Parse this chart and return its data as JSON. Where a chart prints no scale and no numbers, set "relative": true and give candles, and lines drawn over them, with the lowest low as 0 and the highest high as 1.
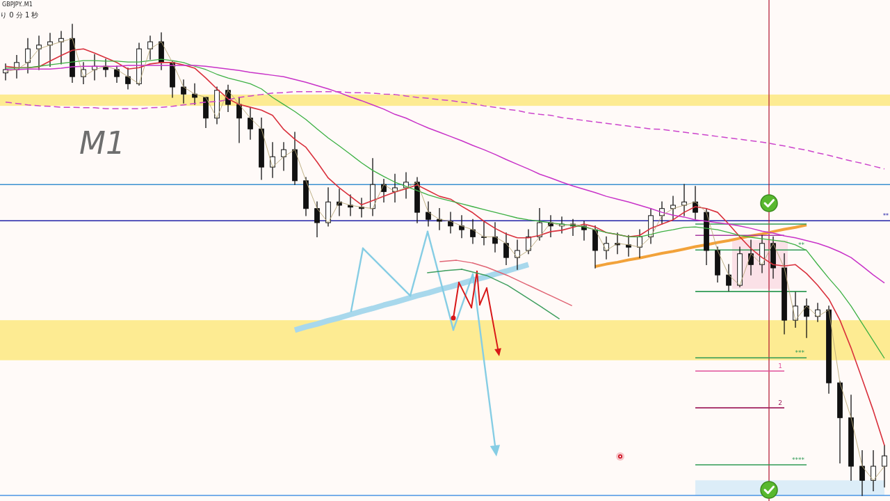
{
  "chart_data": {
    "type": "candlestick",
    "title": "GBPJPY..M1",
    "annotations": [
      "り 0 分 1 秒",
      "M1"
    ],
    "relative": true,
    "categories": [
      null,
      null,
      null,
      null,
      null,
      null,
      null,
      null,
      null,
      null,
      null,
      null,
      null,
      null,
      null,
      null,
      null,
      null,
      null,
      null,
      null,
      null,
      null,
      null,
      null,
      null,
      null,
      null,
      null,
      null,
      null,
      null,
      null,
      null,
      null,
      null,
      null,
      null,
      null,
      null,
      null,
      null,
      null,
      null,
      null,
      null,
      null,
      null,
      null,
      null,
      null,
      null,
      null,
      null,
      null,
      null,
      null,
      null,
      null,
      null,
      null,
      null,
      null,
      null,
      null,
      null,
      null,
      null,
      null,
      null,
      null,
      null,
      null,
      null,
      null,
      null,
      null,
      null,
      null,
      null
    ],
    "ohlc": [
      [
        0.897,
        0.916,
        0.882,
        0.904
      ],
      [
        0.904,
        0.934,
        0.886,
        0.919
      ],
      [
        0.919,
        0.97,
        0.897,
        0.948
      ],
      [
        0.948,
        0.975,
        0.904,
        0.956
      ],
      [
        0.956,
        0.981,
        0.911,
        0.963
      ],
      [
        0.963,
        0.985,
        0.916,
        0.97
      ],
      [
        0.97,
        1,
        0.877,
        0.889
      ],
      [
        0.889,
        0.919,
        0.874,
        0.904
      ],
      [
        0.904,
        0.936,
        0.882,
        0.911
      ],
      [
        0.911,
        0.926,
        0.889,
        0.904
      ],
      [
        0.904,
        0.911,
        0.877,
        0.889
      ],
      [
        0.889,
        0.907,
        0.863,
        0.874
      ],
      [
        0.874,
        0.96,
        0.871,
        0.948
      ],
      [
        0.948,
        0.975,
        0.926,
        0.963
      ],
      [
        0.963,
        0.982,
        0.904,
        0.919
      ],
      [
        0.919,
        0.922,
        0.845,
        0.867
      ],
      [
        0.867,
        0.882,
        0.833,
        0.852
      ],
      [
        0.852,
        0.874,
        0.83,
        0.845
      ],
      [
        0.845,
        0.845,
        0.781,
        0.801
      ],
      [
        0.801,
        0.867,
        0.789,
        0.86
      ],
      [
        0.86,
        0.871,
        0.815,
        0.83
      ],
      [
        0.83,
        0.845,
        0.749,
        0.801
      ],
      [
        0.801,
        0.823,
        0.756,
        0.778
      ],
      [
        0.778,
        0.801,
        0.671,
        0.697
      ],
      [
        0.697,
        0.749,
        0.675,
        0.719
      ],
      [
        0.719,
        0.749,
        0.69,
        0.734
      ],
      [
        0.734,
        0.771,
        0.66,
        0.668
      ],
      [
        0.668,
        0.675,
        0.594,
        0.609
      ],
      [
        0.609,
        0.623,
        0.549,
        0.579
      ],
      [
        0.579,
        0.653,
        0.572,
        0.623
      ],
      [
        0.623,
        0.65,
        0.594,
        0.616
      ],
      [
        0.616,
        0.638,
        0.594,
        0.612
      ],
      [
        0.612,
        0.631,
        0.591,
        0.609
      ],
      [
        0.609,
        0.715,
        0.594,
        0.66
      ],
      [
        0.66,
        0.671,
        0.623,
        0.645
      ],
      [
        0.645,
        0.682,
        0.623,
        0.653
      ],
      [
        0.653,
        0.685,
        0.631,
        0.665
      ],
      [
        0.665,
        0.675,
        0.579,
        0.601
      ],
      [
        0.601,
        0.623,
        0.572,
        0.586
      ],
      [
        0.586,
        0.609,
        0.564,
        0.582
      ],
      [
        0.582,
        0.601,
        0.557,
        0.572
      ],
      [
        0.572,
        0.594,
        0.547,
        0.564
      ],
      [
        0.564,
        0.586,
        0.535,
        0.549
      ],
      [
        0.549,
        0.582,
        0.532,
        0.549
      ],
      [
        0.549,
        0.579,
        0.517,
        0.535
      ],
      [
        0.535,
        0.557,
        0.49,
        0.505
      ],
      [
        0.505,
        0.542,
        0.48,
        0.52
      ],
      [
        0.52,
        0.564,
        0.513,
        0.549
      ],
      [
        0.549,
        0.609,
        0.542,
        0.579
      ],
      [
        0.579,
        0.594,
        0.549,
        0.572
      ],
      [
        0.572,
        0.591,
        0.557,
        0.576
      ],
      [
        0.576,
        0.586,
        0.552,
        0.572
      ],
      [
        0.572,
        0.582,
        0.542,
        0.564
      ],
      [
        0.564,
        0.572,
        0.483,
        0.52
      ],
      [
        0.52,
        0.549,
        0.502,
        0.535
      ],
      [
        0.535,
        0.557,
        0.513,
        0.532
      ],
      [
        0.532,
        0.552,
        0.508,
        0.527
      ],
      [
        0.527,
        0.564,
        0.505,
        0.549
      ],
      [
        0.549,
        0.609,
        0.535,
        0.594
      ],
      [
        0.594,
        0.623,
        0.576,
        0.609
      ],
      [
        0.609,
        0.635,
        0.586,
        0.616
      ],
      [
        0.616,
        0.66,
        0.594,
        0.623
      ],
      [
        0.623,
        0.656,
        0.586,
        0.601
      ],
      [
        0.601,
        0.609,
        0.49,
        0.52
      ],
      [
        0.52,
        0.527,
        0.453,
        0.468
      ],
      [
        0.468,
        0.49,
        0.434,
        0.446
      ],
      [
        0.446,
        0.527,
        0.443,
        0.513
      ],
      [
        0.513,
        0.542,
        0.468,
        0.49
      ],
      [
        0.49,
        0.552,
        0.473,
        0.535
      ],
      [
        0.535,
        0.549,
        0.461,
        0.483
      ],
      [
        0.483,
        0.513,
        0.343,
        0.372
      ],
      [
        0.372,
        0.431,
        0.357,
        0.402
      ],
      [
        0.402,
        0.417,
        0.335,
        0.38
      ],
      [
        0.38,
        0.408,
        0.369,
        0.394
      ],
      [
        0.394,
        0.402,
        0.217,
        0.239
      ],
      [
        0.239,
        0.242,
        0.069,
        0.165
      ],
      [
        0.165,
        0.213,
        0.032,
        0.062
      ],
      [
        0.062,
        0.095,
        0,
        0.032
      ],
      [
        0.032,
        0.095,
        0.01,
        0.062
      ],
      [
        0.062,
        0.106,
        0.018,
        0.084
      ]
    ],
    "series": [
      {
        "type": "line",
        "color": "#d9303c",
        "values": [
          0.911,
          0.908,
          0.908,
          0.91,
          0.922,
          0.934,
          0.945,
          0.948,
          0.939,
          0.929,
          0.919,
          0.905,
          0.908,
          0.916,
          0.919,
          0.919,
          0.914,
          0.907,
          0.886,
          0.863,
          0.842,
          0.83,
          0.824,
          0.818,
          0.807,
          0.777,
          0.756,
          0.739,
          0.708,
          0.674,
          0.653,
          0.635,
          0.617,
          0.626,
          0.635,
          0.644,
          0.651,
          0.659,
          0.647,
          0.635,
          0.629,
          0.614,
          0.6,
          0.582,
          0.567,
          0.555,
          0.547,
          0.547,
          0.552,
          0.56,
          0.563,
          0.569,
          0.576,
          0.57,
          0.558,
          0.554,
          0.549,
          0.552,
          0.567,
          0.576,
          0.585,
          0.601,
          0.613,
          0.609,
          0.601,
          0.576,
          0.549,
          0.524,
          0.505,
          0.49,
          0.487,
          0.49,
          0.471,
          0.446,
          0.417,
          0.372,
          0.313,
          0.247,
          0.18,
          0.106
        ]
      },
      {
        "type": "line",
        "color": "#3cb043",
        "values": [
          0.907,
          0.907,
          0.908,
          0.911,
          0.914,
          0.917,
          0.92,
          0.923,
          0.923,
          0.922,
          0.922,
          0.92,
          0.92,
          0.923,
          0.926,
          0.923,
          0.919,
          0.911,
          0.904,
          0.894,
          0.886,
          0.88,
          0.874,
          0.863,
          0.845,
          0.83,
          0.815,
          0.798,
          0.778,
          0.759,
          0.742,
          0.724,
          0.706,
          0.69,
          0.677,
          0.665,
          0.656,
          0.647,
          0.638,
          0.631,
          0.625,
          0.619,
          0.613,
          0.607,
          0.601,
          0.595,
          0.589,
          0.585,
          0.582,
          0.579,
          0.576,
          0.573,
          0.57,
          0.564,
          0.558,
          0.554,
          0.549,
          0.549,
          0.554,
          0.56,
          0.564,
          0.569,
          0.57,
          0.567,
          0.564,
          0.558,
          0.552,
          0.548,
          0.545,
          0.542,
          0.539,
          0.532,
          0.52,
          0.49,
          0.461,
          0.434,
          0.402,
          0.365,
          0.328,
          0.291
        ]
      },
      {
        "type": "line",
        "color": "#c832c8",
        "values": [
          0.904,
          0.904,
          0.905,
          0.905,
          0.905,
          0.907,
          0.91,
          0.911,
          0.911,
          0.911,
          0.911,
          0.913,
          0.913,
          0.913,
          0.913,
          0.913,
          0.913,
          0.913,
          0.911,
          0.908,
          0.905,
          0.902,
          0.898,
          0.895,
          0.892,
          0.889,
          0.883,
          0.877,
          0.87,
          0.863,
          0.855,
          0.846,
          0.838,
          0.829,
          0.82,
          0.809,
          0.801,
          0.79,
          0.78,
          0.771,
          0.762,
          0.753,
          0.743,
          0.734,
          0.724,
          0.713,
          0.703,
          0.693,
          0.682,
          0.674,
          0.665,
          0.657,
          0.65,
          0.643,
          0.635,
          0.629,
          0.623,
          0.616,
          0.609,
          0.601,
          0.595,
          0.591,
          0.585,
          0.582,
          0.579,
          0.576,
          0.572,
          0.567,
          0.561,
          0.557,
          0.551,
          0.547,
          0.541,
          0.535,
          0.527,
          0.517,
          0.505,
          0.487,
          0.468,
          0.451
        ]
      },
      {
        "type": "line",
        "color": "#cc44cc",
        "line_style": "dashed",
        "values": [
          0.835,
          0.832,
          0.829,
          0.827,
          0.826,
          0.824,
          0.824,
          0.823,
          0.823,
          0.821,
          0.821,
          0.821,
          0.821,
          0.823,
          0.824,
          0.826,
          0.829,
          0.832,
          0.835,
          0.836,
          0.84,
          0.845,
          0.848,
          0.851,
          0.854,
          0.855,
          0.857,
          0.857,
          0.857,
          0.857,
          0.857,
          0.855,
          0.855,
          0.854,
          0.852,
          0.851,
          0.848,
          0.845,
          0.843,
          0.84,
          0.838,
          0.835,
          0.832,
          0.827,
          0.824,
          0.82,
          0.817,
          0.812,
          0.809,
          0.807,
          0.802,
          0.799,
          0.796,
          0.793,
          0.79,
          0.787,
          0.784,
          0.781,
          0.778,
          0.777,
          0.774,
          0.771,
          0.768,
          0.765,
          0.762,
          0.759,
          0.756,
          0.753,
          0.75,
          0.746,
          0.742,
          0.737,
          0.733,
          0.727,
          0.722,
          0.716,
          0.71,
          0.705,
          0.699,
          0.693
        ]
      },
      {
        "type": "line",
        "color": "#b8a878",
        "values": [
          0.9,
          0.904,
          0.919,
          0.948,
          0.956,
          0.963,
          0.97,
          0.889,
          0.904,
          0.911,
          0.904,
          0.889,
          0.874,
          0.948,
          0.963,
          0.919,
          0.867,
          0.852,
          0.845,
          0.801,
          0.86,
          0.83,
          0.801,
          0.778,
          0.697,
          0.719,
          0.734,
          0.668,
          0.609,
          0.579,
          0.623,
          0.616,
          0.612,
          0.609,
          0.66,
          0.645,
          0.653,
          0.665,
          0.601,
          0.586,
          0.582,
          0.572,
          0.564,
          0.549,
          0.549,
          0.535,
          0.505,
          0.52,
          0.549,
          0.579,
          0.572,
          0.576,
          0.572,
          0.564,
          0.52,
          0.535,
          0.532,
          0.527,
          0.549,
          0.594,
          0.609,
          0.616,
          0.623,
          0.601,
          0.52,
          0.468,
          0.446,
          0.513,
          0.49,
          0.535,
          0.483,
          0.372,
          0.402,
          0.38,
          0.394,
          0.239,
          0.165,
          0.062,
          0.032,
          0.062
        ]
      },
      {
        "type": "line",
        "color": "#a8d8ec",
        "values": [
          null,
          null,
          null,
          null,
          null,
          null,
          null,
          null,
          null,
          null,
          null,
          null,
          null,
          null,
          null,
          null,
          null,
          null,
          null,
          null,
          null,
          null,
          null,
          null,
          null,
          null,
          0.351,
          0.358,
          0.364,
          0.371,
          0.377,
          0.384,
          0.391,
          0.397,
          0.404,
          0.41,
          0.417,
          0.424,
          0.43,
          0.437,
          0.443,
          0.45,
          0.457,
          0.463,
          0.47,
          0.476,
          0.483,
          0.49,
          null,
          null,
          null,
          null,
          null,
          null,
          null,
          null,
          null,
          null,
          null,
          null,
          null,
          null,
          null,
          null,
          null,
          null,
          null,
          null,
          null,
          null,
          null,
          null,
          null,
          null,
          null,
          null,
          null,
          null,
          null,
          null
        ]
      },
      {
        "type": "line",
        "color": "#f2a23a",
        "values": [
          null,
          null,
          null,
          null,
          null,
          null,
          null,
          null,
          null,
          null,
          null,
          null,
          null,
          null,
          null,
          null,
          null,
          null,
          null,
          null,
          null,
          null,
          null,
          null,
          null,
          null,
          null,
          null,
          null,
          null,
          null,
          null,
          null,
          null,
          null,
          null,
          null,
          null,
          null,
          null,
          null,
          null,
          null,
          null,
          null,
          null,
          null,
          null,
          null,
          null,
          null,
          null,
          null,
          0.486,
          0.491,
          0.495,
          0.5,
          0.504,
          0.509,
          0.514,
          0.518,
          0.523,
          0.528,
          0.532,
          0.537,
          0.541,
          0.546,
          0.551,
          0.555,
          0.56,
          0.565,
          0.569,
          0.574,
          null,
          null,
          null,
          null,
          null,
          null,
          null
        ]
      },
      {
        "type": "line",
        "color": "#2f9a55",
        "values": [
          null,
          null,
          null,
          null,
          null,
          null,
          null,
          null,
          null,
          null,
          null,
          null,
          null,
          null,
          null,
          null,
          null,
          null,
          null,
          null,
          null,
          null,
          null,
          null,
          null,
          null,
          null,
          null,
          null,
          null,
          null,
          null,
          null,
          null,
          null,
          null,
          null,
          null,
          null,
          null,
          null,
          null,
          null,
          null,
          null,
          null,
          null,
          null,
          null,
          null,
          null,
          null,
          null,
          null,
          null,
          null,
          null,
          null,
          null,
          null,
          null,
          null,
          0.576,
          0.576,
          0.576,
          0.576,
          0.576,
          0.576,
          0.576,
          0.576,
          0.576,
          0.576,
          0.576,
          null,
          null,
          null,
          null,
          null,
          null,
          null
        ]
      },
      {
        "type": "line",
        "color": "#2f9a55",
        "name": "**",
        "values": [
          null,
          null,
          null,
          null,
          null,
          null,
          null,
          null,
          null,
          null,
          null,
          null,
          null,
          null,
          null,
          null,
          null,
          null,
          null,
          null,
          null,
          null,
          null,
          null,
          null,
          null,
          null,
          null,
          null,
          null,
          null,
          null,
          null,
          null,
          null,
          null,
          null,
          null,
          null,
          null,
          null,
          null,
          null,
          null,
          null,
          null,
          null,
          null,
          null,
          null,
          null,
          null,
          null,
          null,
          null,
          null,
          null,
          null,
          null,
          null,
          null,
          null,
          0.521,
          0.521,
          0.521,
          0.521,
          0.521,
          0.521,
          0.521,
          0.521,
          0.521,
          0.521,
          0.521,
          null,
          null,
          null,
          null,
          null,
          null,
          null
        ]
      },
      {
        "type": "line",
        "color": "#2f9a55",
        "values": [
          null,
          null,
          null,
          null,
          null,
          null,
          null,
          null,
          null,
          null,
          null,
          null,
          null,
          null,
          null,
          null,
          null,
          null,
          null,
          null,
          null,
          null,
          null,
          null,
          null,
          null,
          null,
          null,
          null,
          null,
          null,
          null,
          null,
          null,
          null,
          null,
          null,
          null,
          null,
          null,
          null,
          null,
          null,
          null,
          null,
          null,
          null,
          null,
          null,
          null,
          null,
          null,
          null,
          null,
          null,
          null,
          null,
          null,
          null,
          null,
          null,
          null,
          0.433,
          0.433,
          0.433,
          0.433,
          0.433,
          0.433,
          0.433,
          0.433,
          0.433,
          0.433,
          0.433,
          null,
          null,
          null,
          null,
          null,
          null,
          null
        ]
      },
      {
        "type": "line",
        "color": "#2f9a55",
        "name": "***",
        "values": [
          null,
          null,
          null,
          null,
          null,
          null,
          null,
          null,
          null,
          null,
          null,
          null,
          null,
          null,
          null,
          null,
          null,
          null,
          null,
          null,
          null,
          null,
          null,
          null,
          null,
          null,
          null,
          null,
          null,
          null,
          null,
          null,
          null,
          null,
          null,
          null,
          null,
          null,
          null,
          null,
          null,
          null,
          null,
          null,
          null,
          null,
          null,
          null,
          null,
          null,
          null,
          null,
          null,
          null,
          null,
          null,
          null,
          null,
          null,
          null,
          null,
          null,
          0.292,
          0.292,
          0.292,
          0.292,
          0.292,
          0.292,
          0.292,
          0.292,
          0.292,
          0.292,
          0.292,
          null,
          null,
          null,
          null,
          null,
          null,
          null
        ]
      },
      {
        "type": "line",
        "color": "#2f9a55",
        "name": "****",
        "values": [
          null,
          null,
          null,
          null,
          null,
          null,
          null,
          null,
          null,
          null,
          null,
          null,
          null,
          null,
          null,
          null,
          null,
          null,
          null,
          null,
          null,
          null,
          null,
          null,
          null,
          null,
          null,
          null,
          null,
          null,
          null,
          null,
          null,
          null,
          null,
          null,
          null,
          null,
          null,
          null,
          null,
          null,
          null,
          null,
          null,
          null,
          null,
          null,
          null,
          null,
          null,
          null,
          null,
          null,
          null,
          null,
          null,
          null,
          null,
          null,
          null,
          null,
          0.065,
          0.065,
          0.065,
          0.065,
          0.065,
          0.065,
          0.065,
          0.065,
          0.065,
          0.065,
          0.065,
          null,
          null,
          null,
          null,
          null,
          null,
          null
        ]
      },
      {
        "type": "line",
        "color": "#a83aa0",
        "values": [
          null,
          null,
          null,
          null,
          null,
          null,
          null,
          null,
          null,
          null,
          null,
          null,
          null,
          null,
          null,
          null,
          null,
          null,
          null,
          null,
          null,
          null,
          null,
          null,
          null,
          null,
          null,
          null,
          null,
          null,
          null,
          null,
          null,
          null,
          null,
          null,
          null,
          null,
          null,
          null,
          null,
          null,
          null,
          null,
          null,
          null,
          null,
          null,
          null,
          null,
          null,
          null,
          null,
          null,
          null,
          null,
          null,
          null,
          null,
          null,
          null,
          null,
          0.552,
          0.552,
          0.552,
          0.552,
          0.552,
          0.552,
          0.552,
          0.552,
          0.552,
          null,
          null,
          null,
          null,
          null,
          null,
          null,
          null,
          null
        ]
      },
      {
        "type": "line",
        "color": "#e0509a",
        "name": "1",
        "values": [
          null,
          null,
          null,
          null,
          null,
          null,
          null,
          null,
          null,
          null,
          null,
          null,
          null,
          null,
          null,
          null,
          null,
          null,
          null,
          null,
          null,
          null,
          null,
          null,
          null,
          null,
          null,
          null,
          null,
          null,
          null,
          null,
          null,
          null,
          null,
          null,
          null,
          null,
          null,
          null,
          null,
          null,
          null,
          null,
          null,
          null,
          null,
          null,
          null,
          null,
          null,
          null,
          null,
          null,
          null,
          null,
          null,
          null,
          null,
          null,
          null,
          null,
          0.264,
          0.264,
          0.264,
          0.264,
          0.264,
          0.264,
          0.264,
          0.264,
          0.264,
          null,
          null,
          null,
          null,
          null,
          null,
          null,
          null,
          null
        ]
      },
      {
        "type": "line",
        "color": "#a0205e",
        "name": "2",
        "values": [
          null,
          null,
          null,
          null,
          null,
          null,
          null,
          null,
          null,
          null,
          null,
          null,
          null,
          null,
          null,
          null,
          null,
          null,
          null,
          null,
          null,
          null,
          null,
          null,
          null,
          null,
          null,
          null,
          null,
          null,
          null,
          null,
          null,
          null,
          null,
          null,
          null,
          null,
          null,
          null,
          null,
          null,
          null,
          null,
          null,
          null,
          null,
          null,
          null,
          null,
          null,
          null,
          null,
          null,
          null,
          null,
          null,
          null,
          null,
          null,
          null,
          null,
          0.186,
          0.186,
          0.186,
          0.186,
          0.186,
          0.186,
          0.186,
          0.186,
          0.186,
          null,
          null,
          null,
          null,
          null,
          null,
          null,
          null,
          null
        ]
      },
      {
        "type": "area",
        "color": "#dcedf8",
        "values": [
          null,
          null,
          null,
          null,
          null,
          null,
          null,
          null,
          null,
          null,
          null,
          null,
          null,
          null,
          null,
          null,
          null,
          null,
          null,
          null,
          null,
          null,
          null,
          null,
          null,
          null,
          null,
          null,
          null,
          null,
          null,
          null,
          null,
          null,
          null,
          null,
          null,
          null,
          null,
          null,
          null,
          null,
          null,
          null,
          null,
          null,
          null,
          null,
          null,
          null,
          null,
          null,
          null,
          null,
          null,
          null,
          null,
          null,
          null,
          null,
          null,
          null,
          0.032,
          0.032,
          0.032,
          0.032,
          0.032,
          0.032,
          0.032,
          0.032,
          0.032,
          0.032,
          0.032,
          0.032,
          0.032,
          0.032,
          0.032,
          0.032,
          0.032,
          0.032
        ]
      }
    ],
    "ref_lines": [
      {
        "axis": "y",
        "value": 0.66,
        "color": "#3a90d0"
      },
      {
        "axis": "y",
        "value": 0.583,
        "label": "**",
        "color": "#2020a8"
      },
      {
        "axis": "y",
        "value": 0,
        "color": "#4a94e4"
      }
    ],
    "bands": [
      {
        "axis": "y",
        "from": 0.827,
        "to": 0.851,
        "color": "#fdeb92"
      },
      {
        "axis": "y",
        "from": 0.287,
        "to": 0.372,
        "color": "#fdeb92"
      }
    ]
  }
}
